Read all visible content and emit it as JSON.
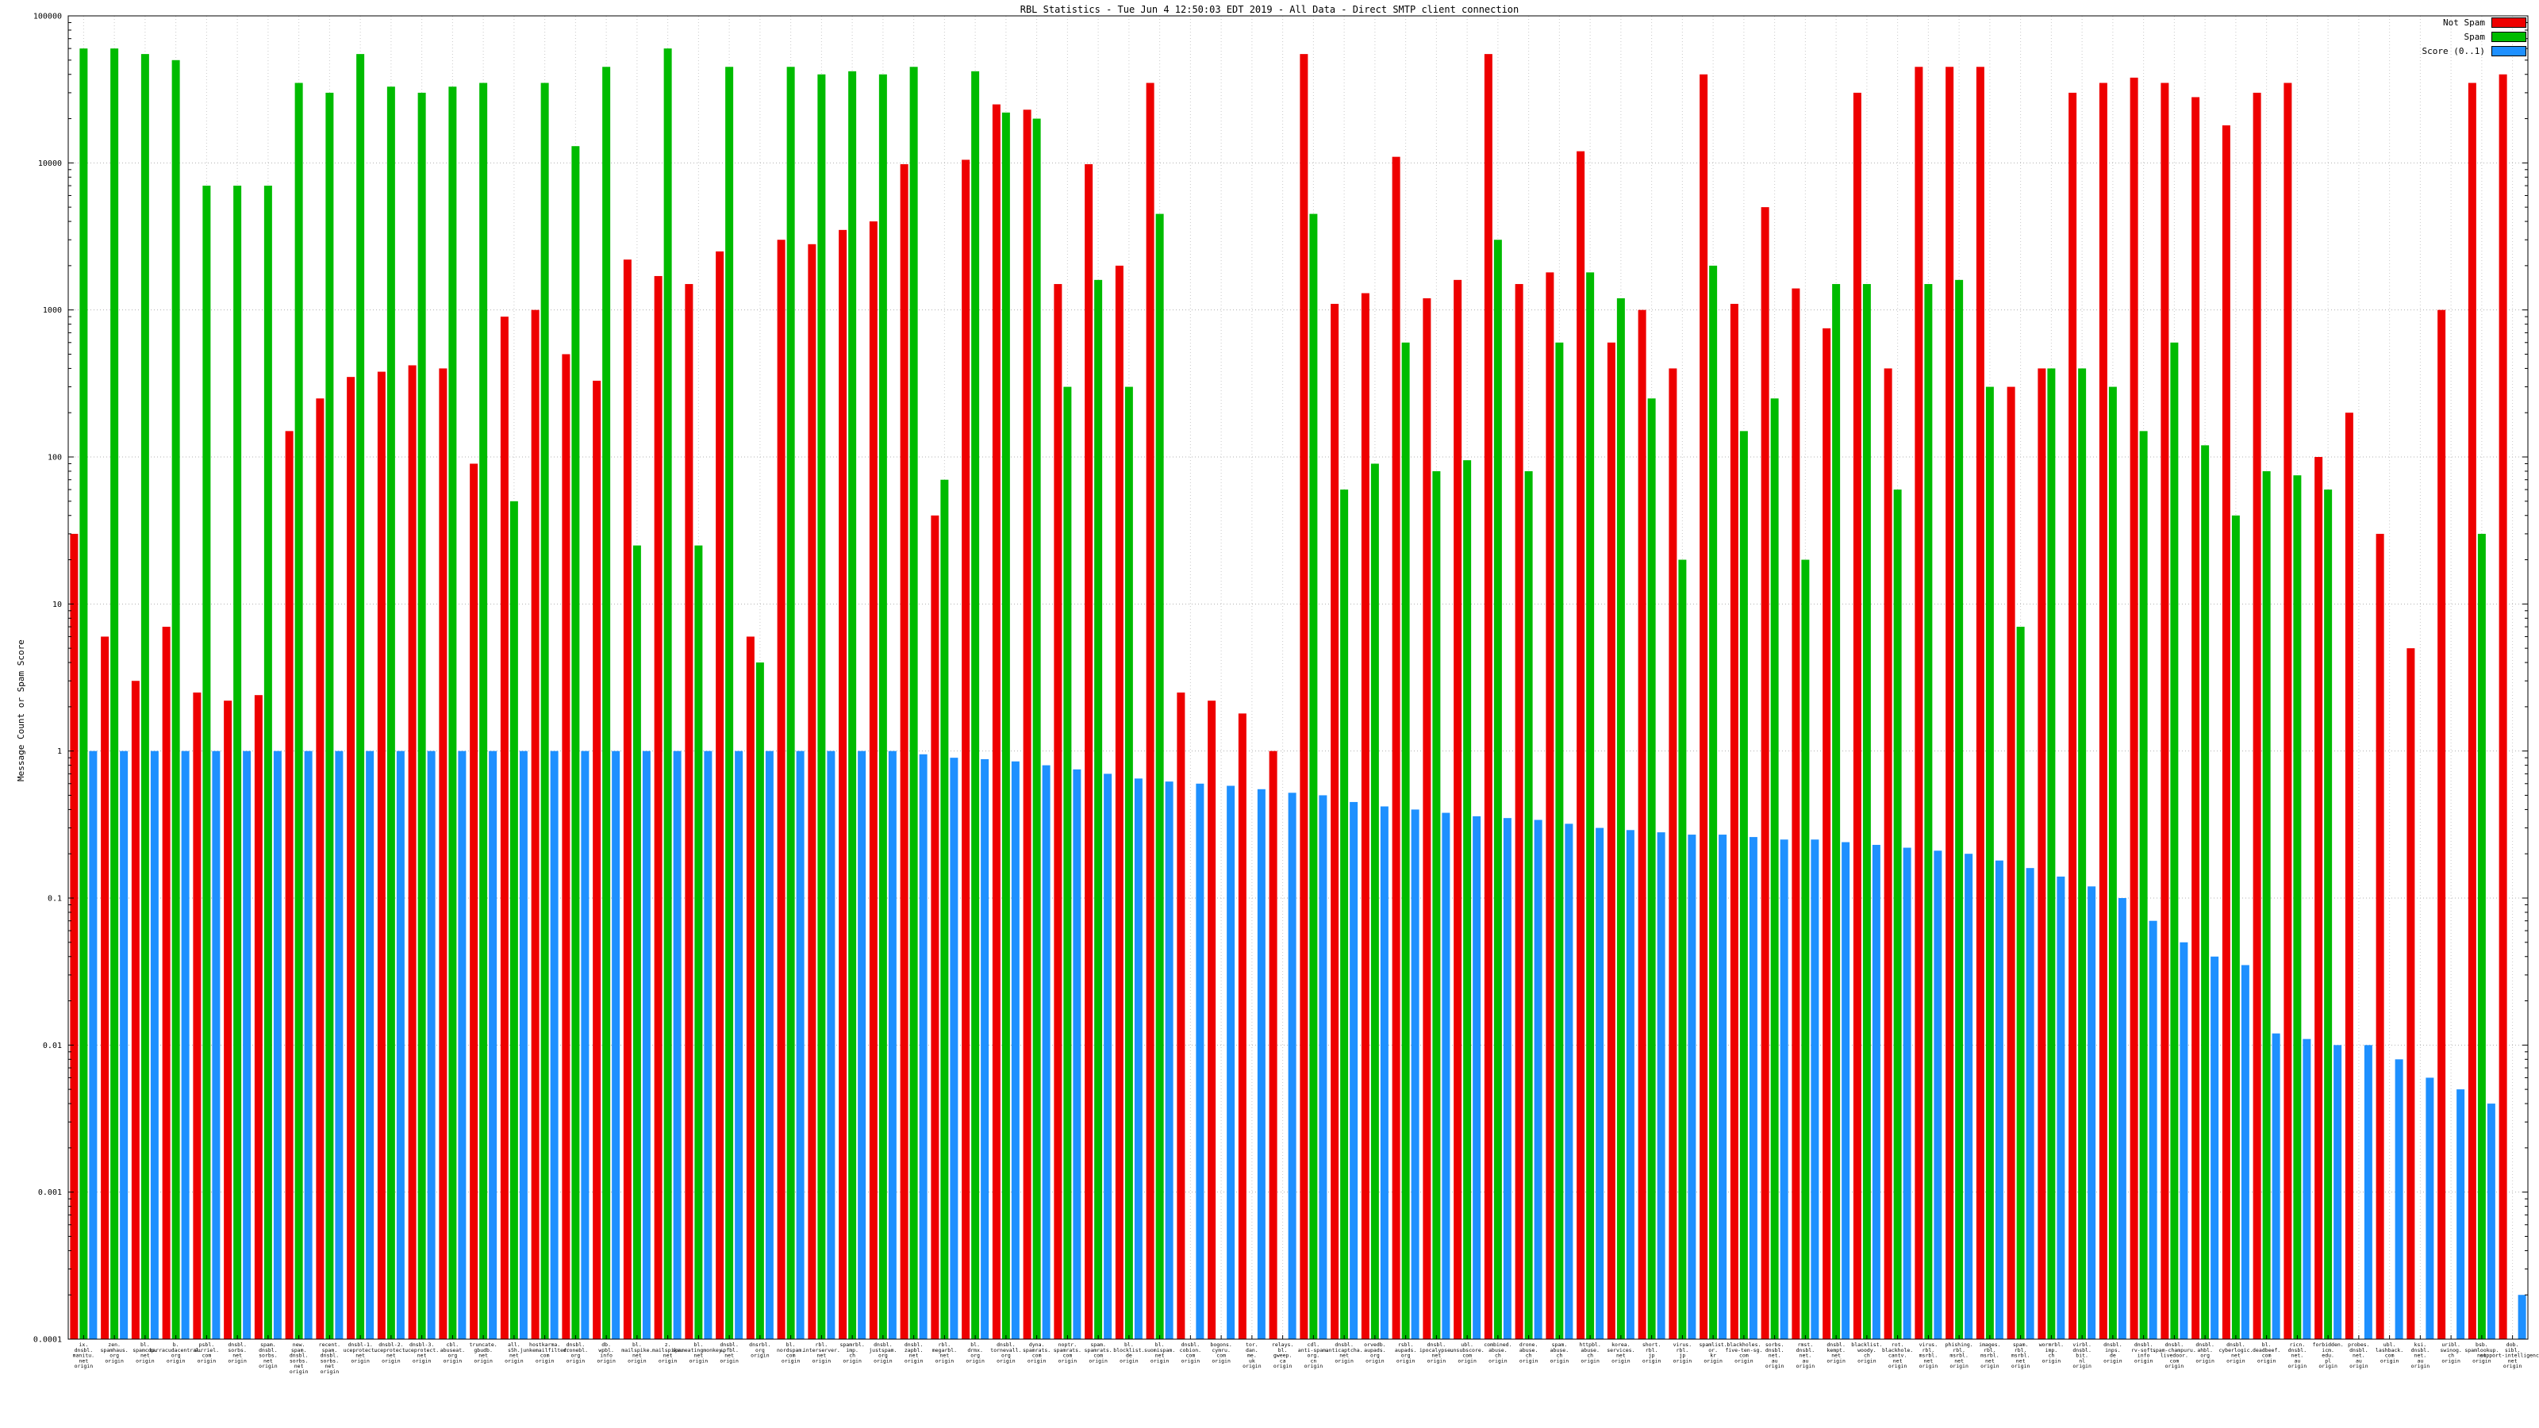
{
  "chart_data": {
    "type": "bar",
    "title": "RBL Statistics - Tue Jun  4 12:50:03 EDT 2019 - All Data - Direct SMTP client connection",
    "ylabel": "Message Count or Spam Score",
    "yscale": "log",
    "ylim": [
      0.0001,
      100000
    ],
    "yticks": [
      100000,
      10000,
      1000,
      100,
      10,
      1,
      0.1,
      0.01,
      0.001,
      0.0001
    ],
    "grid": true,
    "legend_position": "top-right",
    "categories": [
      "ix.\ndnsbl.\nmanitu.\nnet\norigin",
      "zen.\nspamhaus.\norg\norigin",
      "bl.\nspamcop.\nnet\norigin",
      "b.\nbarracudacentral.\norg\norigin",
      "psbl.\nsurriel.\ncom\norigin",
      "dnsbl.\nsorbs.\nnet\norigin",
      "spam.\ndnsbl.\nsorbs.\nnet\norigin",
      "new.\nspam.\ndnsbl.\nsorbs.\nnet\norigin",
      "recent.\nspam.\ndnsbl.\nsorbs.\nnet\norigin",
      "dnsbl-1.\nuceprotect.\nnet\norigin",
      "dnsbl-2.\nuceprotect.\nnet\norigin",
      "dnsbl-3.\nuceprotect.\nnet\norigin",
      "cbl.\nabuseat.\norg\norigin",
      "truncate.\ngbudb.\nnet\norigin",
      "all.\ns5h.\nnet\norigin",
      "hostkarma.\njunkemailfilter.\ncom\norigin",
      "dnsbl.\ndronebl.\norg\norigin",
      "db.\nwpbl.\ninfo\norigin",
      "bl.\nmailspike.\nnet\norigin",
      "z.\nmailspike.\nnet\norigin",
      "bl.\nspameatingmonkey.\nnet\norigin",
      "dnsbl.\nspfbl.\nnet\norigin",
      "dnsrbl.\norg\norigin",
      "bl.\nnordspam.\ncom\norigin",
      "rbl.\ninterserver.\nnet\norigin",
      "spamrbl.\nimp.\nch\norigin",
      "dnsbl.\njustspam.\norg\norigin",
      "dnsbl.\nzapbl.\nnet\norigin",
      "rbl.\nmegarbl.\nnet\norigin",
      "bl.\ndrmx.\norg\norigin",
      "dnsbl.\ntornevall.\norg\norigin",
      "dyna.\nspamrats.\ncom\norigin",
      "noptr.\nspamrats.\ncom\norigin",
      "spam.\nspamrats.\ncom\norigin",
      "bl.\nblocklist.\nde\norigin",
      "bl.\nsuomispam.\nnet\norigin",
      "dnsbl.\ncobion.\ncom\norigin",
      "bogons.\ncymru.\ncom\norigin",
      "tor.\ndan.\nme.\nuk\norigin",
      "relays.\nbl.\ngweep.\nca\norigin",
      "cdl.\nanti-spam.\norg.\ncn\norigin",
      "dnsbl.\nanticaptcha.\nnet\norigin",
      "orvedb.\naupads.\norg\norigin",
      "rsbl.\naupads.\norg\norigin",
      "dnsbl.\nipocalypse.\nnet\norigin",
      "ubl.\nunsubscore.\ncom\norigin",
      "combined.\nabuse.\nch\norigin",
      "drone.\nabuse.\nch\norigin",
      "spam.\nabuse.\nch\norigin",
      "httpbl.\nabuse.\nch\norigin",
      "korea.\nservices.\nnet\norigin",
      "short.\nrbl.\njp\norigin",
      "virus.\nrbl.\njp\norigin",
      "spamlist.\nor.\nkr\norigin",
      "blackholes.\nfive-ten-sg.\ncom\norigin",
      "sorbs.\ndnsbl.\nnet.\nau\norigin",
      "rmst.\ndnsbl.\nnet.\nau\norigin",
      "dnsbl.\nkempt.\nnet\norigin",
      "blacklist.\nwoody.\nch\norigin",
      "rot.\nblackhole.\ncantv.\nnet\norigin",
      "virus.\nrbl.\nmsrbl.\nnet\norigin",
      "phishing.\nrbl.\nmsrbl.\nnet\norigin",
      "images.\nrbl.\nmsrbl.\nnet\norigin",
      "spam.\nrbl.\nmsrbl.\nnet\norigin",
      "wormrbl.\nimp.\nch\norigin",
      "virbl.\ndnsbl.\nbit.\nnl\norigin",
      "dnsbl.\ninps.\nde\norigin",
      "dnsbl.\nrv-soft.\ninfo\norigin",
      "dnsbl.\nspam-champuru.\nlivedoor.\ncom\norigin",
      "dnsbl.\nahbl.\norg\norigin",
      "dnsbl.\ncyberlogic.\nnet\norigin",
      "bl.\ndeadbeef.\ncom\norigin",
      "ricn.\ndnsbl.\nnet.\nau\norigin",
      "forbidden.\nicm.\nedu.\npl\norigin",
      "probes.\ndnsbl.\nnet.\nau\norigin",
      "ubl.\nlashback.\ncom\norigin",
      "ksi.\ndnsbl.\nnet.\nau\norigin",
      "uribl.\nswinog.\nch\norigin",
      "bsb.\nspamlookup.\nnet\norigin",
      "dob.\nsibl.\nsupport-intelligence.\nnet\norigin"
    ],
    "series": [
      {
        "name": "Not Spam",
        "color": "#ee0000",
        "values": [
          30,
          6,
          3,
          7,
          2.5,
          2.2,
          2.4,
          150,
          250,
          350,
          380,
          420,
          400,
          90,
          900,
          1000,
          500,
          330,
          2200,
          1700,
          1500,
          2500,
          6,
          3000,
          2800,
          3500,
          4000,
          9800,
          40,
          10500,
          25000,
          23000,
          1500,
          9800,
          2000,
          35000,
          2.5,
          2.2,
          1.8,
          1.0,
          55000,
          1100,
          1300,
          11000,
          1200,
          1600,
          55000,
          1500,
          1800,
          12000,
          600,
          1000,
          400,
          40000,
          1100,
          5000,
          1400,
          750,
          30000,
          400,
          45000,
          45000,
          45000,
          300,
          400,
          30000,
          35000,
          38000,
          35000,
          28000,
          18000,
          30000,
          35000,
          100,
          200,
          30,
          5,
          1000,
          35000,
          40000
        ]
      },
      {
        "name": "Spam",
        "color": "#00bb00",
        "values": [
          60000,
          60000,
          55000,
          50000,
          7000,
          7000,
          7000,
          35000,
          30000,
          55000,
          33000,
          30000,
          33000,
          35000,
          50,
          35000,
          13000,
          45000,
          25,
          60000,
          25,
          45000,
          4,
          45000,
          40000,
          42000,
          40000,
          45000,
          70,
          42000,
          22000,
          20000,
          300,
          1600,
          300,
          4500,
          0,
          0,
          0,
          0,
          4500,
          60,
          90,
          600,
          80,
          95,
          3000,
          80,
          600,
          1800,
          1200,
          250,
          20,
          2000,
          150,
          250,
          20,
          1500,
          1500,
          60,
          1500,
          1600,
          300,
          7,
          400,
          400,
          300,
          150,
          600,
          120,
          40,
          80,
          75,
          60,
          0,
          0,
          0,
          0,
          30,
          0
        ]
      },
      {
        "name": "Score (0..1)",
        "color": "#1e90ff",
        "values": [
          1,
          1,
          1,
          1,
          1,
          1,
          1,
          1,
          1,
          1,
          1,
          1,
          1,
          1,
          1,
          1,
          1,
          1,
          1,
          1,
          1,
          1,
          1,
          1,
          1,
          1,
          1,
          0.95,
          0.9,
          0.88,
          0.85,
          0.8,
          0.75,
          0.7,
          0.65,
          0.62,
          0.6,
          0.58,
          0.55,
          0.52,
          0.5,
          0.45,
          0.42,
          0.4,
          0.38,
          0.36,
          0.35,
          0.34,
          0.32,
          0.3,
          0.29,
          0.28,
          0.27,
          0.27,
          0.26,
          0.25,
          0.25,
          0.24,
          0.23,
          0.22,
          0.21,
          0.2,
          0.18,
          0.16,
          0.14,
          0.12,
          0.1,
          0.07,
          0.05,
          0.04,
          0.035,
          0.012,
          0.011,
          0.01,
          0.01,
          0.008,
          0.006,
          0.005,
          0.004,
          0.0002
        ]
      }
    ]
  }
}
